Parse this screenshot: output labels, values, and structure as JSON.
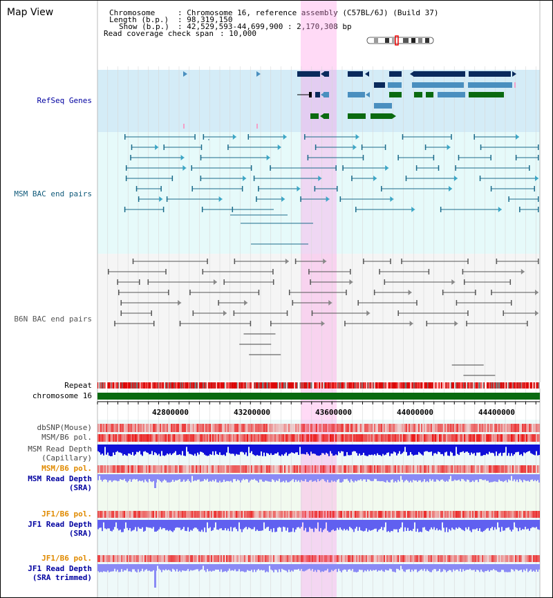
{
  "title": "Map View",
  "header": {
    "chromosome_key": "Chromosome",
    "chromosome_val": ": Chromosome 16, reference assembly (C57BL/6J) (Build 37)",
    "length_key": "Length (b.p.)",
    "length_val": ": 98,319,150",
    "show_key": "Show (b.p.)",
    "show_val": ": 42,529,593-44,699,900 : 2,170,308 bp",
    "read_key": "Read coverage check span",
    "read_val": ": 10,000"
  },
  "tracks": {
    "refseq": "RefSeq Genes",
    "msm_bac": "MSM BAC end pairs",
    "b6n_bac": "B6N BAC end pairs",
    "repeat": "Repeat",
    "chromosome": "chromosome 16",
    "dbsnp": "dbSNP(Mouse)",
    "msm_b6_pol_1": "MSM/B6 pol.",
    "msm_read_cap_1": "MSM Read Depth",
    "msm_read_cap_2": "(Capillary)",
    "msm_b6_pol_2": "MSM/B6 pol.",
    "msm_read_sra_1": "MSM Read Depth",
    "msm_read_sra_2": "(SRA)",
    "jf1_pol_1": "JF1/B6 pol.",
    "jf1_read_sra_1": "JF1 Read Depth",
    "jf1_read_sra_2": "(SRA)",
    "jf1_pol_2": "JF1/B6 pol.",
    "jf1_trim_1": "JF1 Read Depth",
    "jf1_trim_2": "(SRA trimmed)"
  },
  "axis_ticks": [
    "42800000",
    "43200000",
    "43600000",
    "44000000",
    "44400000"
  ],
  "colors": {
    "refseq_bg": "#d4ecf7",
    "msm_bg": "#e6fafa",
    "b6n_bg": "#f4f4f4",
    "highlight": "#ffb4ec",
    "navy": "#0a2a5c",
    "steel": "#4a8fbf",
    "green": "#0a6a10",
    "orange": "#e08a00",
    "blue_label": "#0000a0"
  }
}
